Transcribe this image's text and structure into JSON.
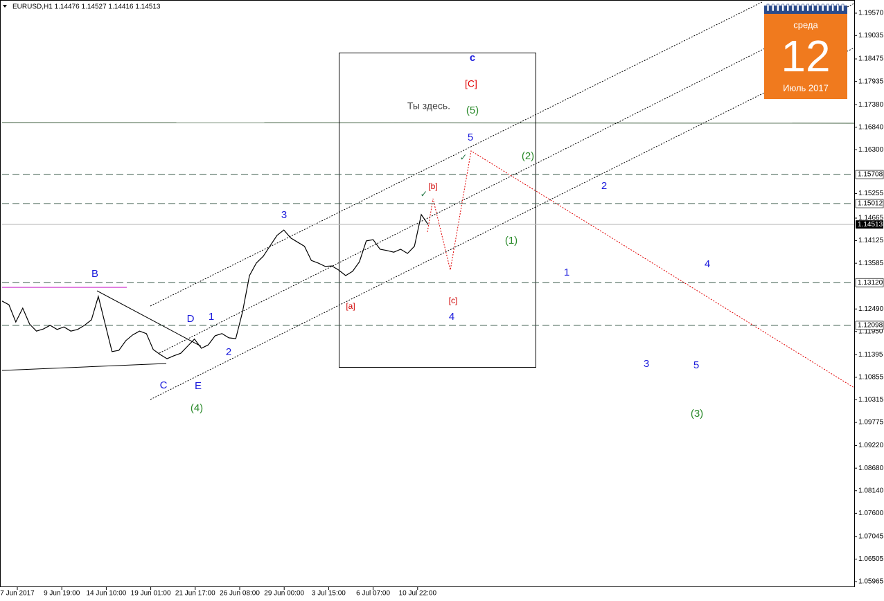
{
  "chart_data": {
    "type": "line",
    "header": "EURUSD,H1  1.14476 1.14527 1.14416 1.14513",
    "price": {
      "color": "#000000",
      "values": [
        1.1268,
        1.1259,
        1.1218,
        1.1251,
        1.1213,
        1.1196,
        1.1201,
        1.121,
        1.12,
        1.1206,
        1.1196,
        1.12,
        1.121,
        1.1223,
        1.1279,
        1.1213,
        1.1147,
        1.115,
        1.1173,
        1.1187,
        1.1196,
        1.119,
        1.1152,
        1.114,
        1.113,
        1.1137,
        1.1143,
        1.116,
        1.1177,
        1.1155,
        1.1163,
        1.1185,
        1.119,
        1.118,
        1.1178,
        1.1243,
        1.1329,
        1.1359,
        1.1375,
        1.14,
        1.1425,
        1.1438,
        1.1419,
        1.1409,
        1.1399,
        1.1365,
        1.1359,
        1.1351,
        1.1352,
        1.1342,
        1.1329,
        1.1339,
        1.1362,
        1.1412,
        1.1415,
        1.1392,
        1.1389,
        1.1385,
        1.1392,
        1.1382,
        1.1399,
        1.1475,
        1.1451
      ]
    },
    "ylim": [
      1.05965,
      1.1957
    ],
    "yticks": [
      {
        "value": 1.1957,
        "label": "1.19570"
      },
      {
        "value": 1.19035,
        "label": "1.19035"
      },
      {
        "value": 1.18475,
        "label": "1.18475"
      },
      {
        "value": 1.17935,
        "label": "1.17935"
      },
      {
        "value": 1.1738,
        "label": "1.17380"
      },
      {
        "value": 1.1684,
        "label": "1.16840"
      },
      {
        "value": 1.163,
        "label": "1.16300"
      },
      {
        "value": 1.15255,
        "label": "1.15255"
      },
      {
        "value": 1.14665,
        "label": "1.14665"
      },
      {
        "value": 1.14125,
        "label": "1.14125"
      },
      {
        "value": 1.13585,
        "label": "1.13585"
      },
      {
        "value": 1.1249,
        "label": "1.12490"
      },
      {
        "value": 1.1195,
        "label": "1.11950"
      },
      {
        "value": 1.11395,
        "label": "1.11395"
      },
      {
        "value": 1.10855,
        "label": "1.10855"
      },
      {
        "value": 1.10315,
        "label": "1.10315"
      },
      {
        "value": 1.09775,
        "label": "1.09775"
      },
      {
        "value": 1.0922,
        "label": "1.09220"
      },
      {
        "value": 1.0868,
        "label": "1.08680"
      },
      {
        "value": 1.0814,
        "label": "1.08140"
      },
      {
        "value": 1.076,
        "label": "1.07600"
      },
      {
        "value": 1.07045,
        "label": "1.07045"
      },
      {
        "value": 1.06505,
        "label": "1.06505"
      },
      {
        "value": 1.05965,
        "label": "1.05965"
      }
    ],
    "levels": [
      {
        "value": 1.15708,
        "label": "1.15708"
      },
      {
        "value": 1.15012,
        "label": "1.15012"
      },
      {
        "value": 1.1312,
        "label": "1.13120"
      },
      {
        "value": 1.12098,
        "label": "1.12098"
      }
    ],
    "current": {
      "value": 1.14513,
      "label": "1.14513"
    },
    "categories": [
      "7 Jun 2017",
      "9 Jun 19:00",
      "14 Jun 10:00",
      "19 Jun 01:00",
      "21 Jun 17:00",
      "26 Jun 08:00",
      "29 Jun 00:00",
      "3 Jul 15:00",
      "6 Jul 07:00",
      "10 Jul 22:00"
    ],
    "annotations": [
      "B",
      "D",
      "1",
      "2",
      "C",
      "E",
      "(4)",
      "3",
      "[a]",
      "c",
      "[C]",
      "Ты здесь.",
      "(5)",
      "5",
      "(2)",
      "[b]",
      "2",
      "(1)",
      "1",
      "4",
      "[c]",
      "4",
      "3",
      "5",
      "(3)",
      "✓",
      "✓"
    ],
    "calendar": {
      "weekday": "среда",
      "day": "12",
      "month": "Июль 2017"
    }
  }
}
